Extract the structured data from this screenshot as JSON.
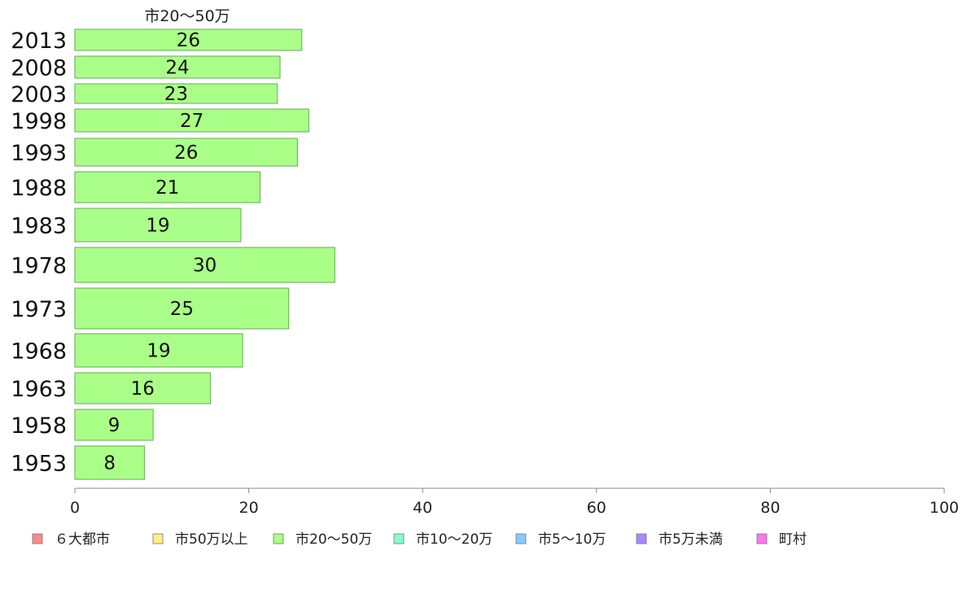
{
  "chart_data": {
    "type": "bar",
    "orientation": "horizontal",
    "series_title": "市20〜50万",
    "categories": [
      "2013",
      "2008",
      "2003",
      "1998",
      "1993",
      "1988",
      "1983",
      "1978",
      "1973",
      "1968",
      "1963",
      "1958",
      "1953"
    ],
    "values": [
      26,
      24,
      23,
      27,
      26,
      21,
      19,
      30,
      25,
      19,
      16,
      9,
      8
    ],
    "bar_values": [
      26.1,
      23.6,
      23.3,
      26.9,
      25.6,
      21.3,
      19.1,
      29.9,
      24.6,
      19.3,
      15.6,
      9.0,
      8.0
    ],
    "xlim": [
      0,
      100
    ],
    "xticks": [
      "0",
      "20",
      "40",
      "60",
      "80",
      "100"
    ],
    "bar_color": "#aaff88",
    "bar_stroke": "#66aa55",
    "legend_placement": "bottom",
    "legend": [
      {
        "label": "６大都市",
        "color": "#ff8888"
      },
      {
        "label": "市50万以上",
        "color": "#ffee88"
      },
      {
        "label": "市20〜50万",
        "color": "#aaff88"
      },
      {
        "label": "市10〜20万",
        "color": "#88ffcc"
      },
      {
        "label": "市5〜10万",
        "color": "#88ccff"
      },
      {
        "label": "市5万未満",
        "color": "#aa88ff"
      },
      {
        "label": "町村",
        "color": "#ff77ee"
      }
    ]
  }
}
